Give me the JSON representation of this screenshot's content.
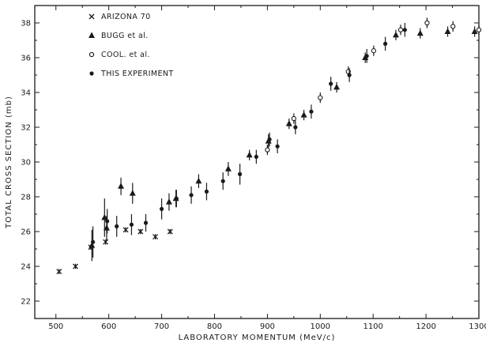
{
  "chart_data": {
    "type": "scatter",
    "title": "",
    "xlabel": "LABORATORY MOMENTUM  (MeV/c)",
    "ylabel": "TOTAL CROSS SECTION (mb)",
    "xlim": [
      460,
      1300
    ],
    "ylim": [
      21,
      39
    ],
    "xticks": [
      500,
      600,
      700,
      800,
      900,
      1000,
      1100,
      1200,
      1300
    ],
    "yticks": [
      22,
      24,
      26,
      28,
      30,
      32,
      34,
      36,
      38
    ],
    "grid": false,
    "legend_position": "top-left",
    "series": [
      {
        "name": "ARIZONA 70",
        "marker": "cross",
        "points": [
          {
            "x": 506,
            "y": 23.7,
            "err": 0.15
          },
          {
            "x": 537,
            "y": 24.0,
            "err": 0.15
          },
          {
            "x": 566,
            "y": 25.1,
            "err": 0.15
          },
          {
            "x": 594,
            "y": 25.4,
            "err": 0.15
          },
          {
            "x": 632,
            "y": 26.1,
            "err": 0.15
          },
          {
            "x": 660,
            "y": 26.0,
            "err": 0.15
          },
          {
            "x": 688,
            "y": 25.7,
            "err": 0.15
          },
          {
            "x": 716,
            "y": 26.0,
            "err": 0.15
          }
        ]
      },
      {
        "name": "BUGG et al.",
        "marker": "triangle",
        "points": [
          {
            "x": 568,
            "y": 25.2,
            "err": 0.9
          },
          {
            "x": 592,
            "y": 26.8,
            "err": 1.1
          },
          {
            "x": 596,
            "y": 26.2,
            "err": 0.7
          },
          {
            "x": 623,
            "y": 28.6,
            "err": 0.5
          },
          {
            "x": 645,
            "y": 28.2,
            "err": 0.6
          },
          {
            "x": 714,
            "y": 27.7,
            "err": 0.5
          },
          {
            "x": 727,
            "y": 27.9,
            "err": 0.5
          },
          {
            "x": 770,
            "y": 28.9,
            "err": 0.4
          },
          {
            "x": 826,
            "y": 29.6,
            "err": 0.4
          },
          {
            "x": 866,
            "y": 30.4,
            "err": 0.3
          },
          {
            "x": 902,
            "y": 31.2,
            "err": 0.4
          },
          {
            "x": 941,
            "y": 32.2,
            "err": 0.3
          },
          {
            "x": 969,
            "y": 32.7,
            "err": 0.3
          },
          {
            "x": 1031,
            "y": 34.3,
            "err": 0.3
          },
          {
            "x": 1085,
            "y": 36.0,
            "err": 0.3
          },
          {
            "x": 1143,
            "y": 37.3,
            "err": 0.3
          },
          {
            "x": 1189,
            "y": 37.4,
            "err": 0.3
          },
          {
            "x": 1241,
            "y": 37.5,
            "err": 0.3
          },
          {
            "x": 1292,
            "y": 37.5,
            "err": 0.3
          }
        ]
      },
      {
        "name": "COOL. et al.",
        "marker": "circle-open",
        "points": [
          {
            "x": 900,
            "y": 30.7,
            "err": 0.3
          },
          {
            "x": 950,
            "y": 32.5,
            "err": 0.3
          },
          {
            "x": 1000,
            "y": 33.7,
            "err": 0.3
          },
          {
            "x": 1053,
            "y": 35.2,
            "err": 0.3
          },
          {
            "x": 1101,
            "y": 36.4,
            "err": 0.3
          },
          {
            "x": 1152,
            "y": 37.6,
            "err": 0.3
          },
          {
            "x": 1202,
            "y": 38.0,
            "err": 0.3
          },
          {
            "x": 1251,
            "y": 37.8,
            "err": 0.3
          },
          {
            "x": 1300,
            "y": 37.6,
            "err": 0.3
          }
        ]
      },
      {
        "name": "THIS EXPERIMENT",
        "marker": "circle-filled",
        "points": [
          {
            "x": 570,
            "y": 25.4,
            "err": 0.9
          },
          {
            "x": 597,
            "y": 26.6,
            "err": 0.7
          },
          {
            "x": 615,
            "y": 26.3,
            "err": 0.6
          },
          {
            "x": 643,
            "y": 26.4,
            "err": 0.6
          },
          {
            "x": 670,
            "y": 26.5,
            "err": 0.5
          },
          {
            "x": 700,
            "y": 27.3,
            "err": 0.6
          },
          {
            "x": 728,
            "y": 27.9,
            "err": 0.5
          },
          {
            "x": 756,
            "y": 28.1,
            "err": 0.5
          },
          {
            "x": 785,
            "y": 28.3,
            "err": 0.5
          },
          {
            "x": 816,
            "y": 28.9,
            "err": 0.5
          },
          {
            "x": 848,
            "y": 29.3,
            "err": 0.6
          },
          {
            "x": 879,
            "y": 30.3,
            "err": 0.4
          },
          {
            "x": 904,
            "y": 31.3,
            "err": 0.4
          },
          {
            "x": 919,
            "y": 30.9,
            "err": 0.4
          },
          {
            "x": 953,
            "y": 32.0,
            "err": 0.4
          },
          {
            "x": 983,
            "y": 32.9,
            "err": 0.4
          },
          {
            "x": 1020,
            "y": 34.5,
            "err": 0.4
          },
          {
            "x": 1055,
            "y": 35.0,
            "err": 0.4
          },
          {
            "x": 1088,
            "y": 36.1,
            "err": 0.4
          },
          {
            "x": 1123,
            "y": 36.8,
            "err": 0.4
          },
          {
            "x": 1160,
            "y": 37.6,
            "err": 0.4
          }
        ]
      }
    ]
  }
}
